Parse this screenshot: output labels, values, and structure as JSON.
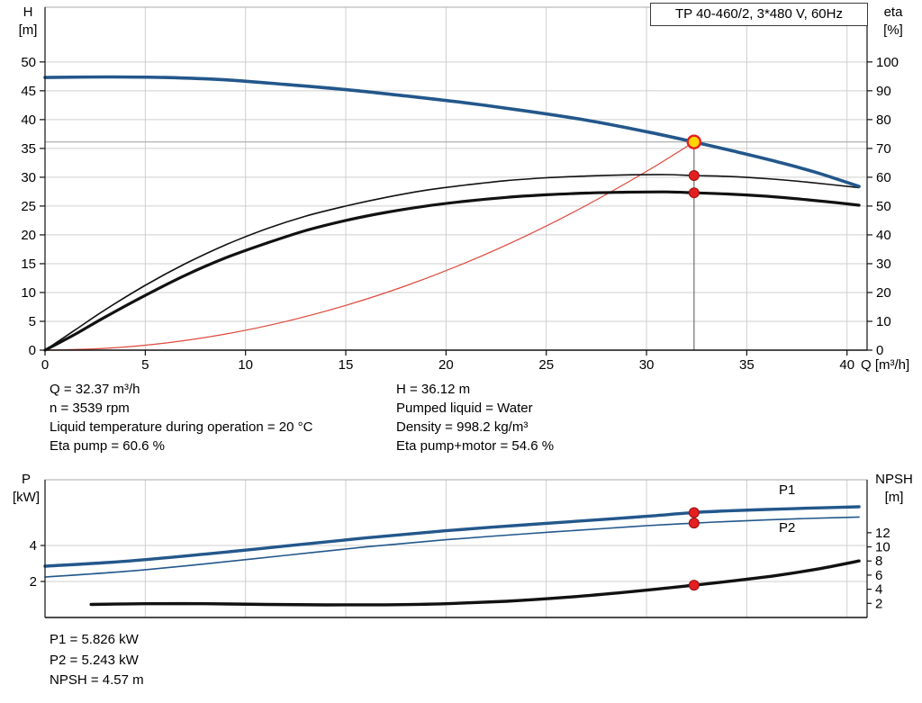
{
  "axis_labels": {
    "h": [
      "H",
      "[m]"
    ],
    "eta": [
      "eta",
      "[%]"
    ],
    "q": "Q [m³/h]",
    "p": [
      "P",
      "[kW]"
    ],
    "npsh": [
      "NPSH",
      "[m]"
    ]
  },
  "operating_point": {
    "left": [
      "Q = 32.37 m³/h",
      "n = 3539 rpm",
      "Liquid temperature during operation = 20 °C",
      "Eta pump = 60.6 %"
    ],
    "right": [
      "H = 36.12 m",
      "Pumped liquid = Water",
      "Density = 998.2 kg/m³",
      "Eta pump+motor = 54.6 %"
    ],
    "bottom": [
      "P1 = 5.826 kW",
      "P2 = 5.243 kW",
      "NPSH = 4.57 m"
    ]
  },
  "colors": {
    "curve_blue": "#23578b",
    "curve_black": "#111111",
    "curve_red": "#dd4a3c",
    "marker_red": "#e31f1f",
    "marker_yellow": "#ffd500",
    "grid": "#cfcfcf",
    "guide_gray": "#8a8a8a"
  },
  "chart_data": [
    {
      "type": "line",
      "name": "qh-efficiency-chart",
      "title": "TP 40-460/2, 3*480 V, 60Hz",
      "x_axis": {
        "label": "Q [m³/h]",
        "min": 0,
        "max": 41,
        "ticks": [
          0,
          5,
          10,
          15,
          20,
          25,
          30,
          35,
          40
        ]
      },
      "y_left": {
        "label": "H [m]",
        "min": 0,
        "max": 59.5,
        "ticks": [
          0,
          5,
          10,
          15,
          20,
          25,
          30,
          35,
          40,
          45,
          50
        ]
      },
      "y_right": {
        "label": "eta [%]",
        "min": 0,
        "max": 119,
        "ticks": [
          0,
          10,
          20,
          30,
          40,
          50,
          60,
          70,
          80,
          90,
          100
        ]
      },
      "grid": true,
      "series": [
        {
          "name": "system-curve",
          "axis": "left",
          "color": "#dd4a3c",
          "width": 1.2,
          "points": [
            [
              0,
              0
            ],
            [
              3,
              0.31
            ],
            [
              6,
              1.24
            ],
            [
              9,
              2.79
            ],
            [
              12,
              4.96
            ],
            [
              15,
              7.76
            ],
            [
              18,
              11.17
            ],
            [
              21,
              15.2
            ],
            [
              24,
              19.85
            ],
            [
              27,
              25.13
            ],
            [
              30,
              31.02
            ],
            [
              32.37,
              36.12
            ]
          ]
        },
        {
          "name": "eta-pump-curve",
          "axis": "right",
          "color": "#111111",
          "width": 1.6,
          "points": [
            [
              0,
              0
            ],
            [
              1.5,
              7
            ],
            [
              3,
              14
            ],
            [
              5,
              22.5
            ],
            [
              7,
              30
            ],
            [
              9,
              36.5
            ],
            [
              11,
              42
            ],
            [
              13,
              46.5
            ],
            [
              15,
              50
            ],
            [
              17,
              53
            ],
            [
              19,
              55.5
            ],
            [
              21,
              57.3
            ],
            [
              23,
              58.8
            ],
            [
              25,
              59.8
            ],
            [
              27,
              60.4
            ],
            [
              29,
              60.8
            ],
            [
              31,
              60.9
            ],
            [
              32.37,
              60.6
            ],
            [
              34,
              60.3
            ],
            [
              36,
              59.5
            ],
            [
              38,
              58.3
            ],
            [
              40.6,
              56.4
            ]
          ]
        },
        {
          "name": "eta-pump-motor-curve",
          "axis": "right",
          "color": "#111111",
          "width": 3.2,
          "points": [
            [
              0,
              0
            ],
            [
              1.5,
              5.5
            ],
            [
              3,
              11.5
            ],
            [
              5,
              19
            ],
            [
              7,
              26
            ],
            [
              9,
              32
            ],
            [
              11,
              37
            ],
            [
              13,
              41.5
            ],
            [
              15,
              45
            ],
            [
              17,
              47.8
            ],
            [
              19,
              50
            ],
            [
              21,
              51.7
            ],
            [
              23,
              53
            ],
            [
              25,
              53.9
            ],
            [
              27,
              54.5
            ],
            [
              29,
              54.8
            ],
            [
              31,
              54.9
            ],
            [
              32.37,
              54.6
            ],
            [
              34,
              54.2
            ],
            [
              36,
              53.4
            ],
            [
              38,
              52.2
            ],
            [
              40.6,
              50.3
            ]
          ]
        },
        {
          "name": "qh-curve",
          "axis": "left",
          "color": "#23578b",
          "width": 3.6,
          "points": [
            [
              0,
              47.3
            ],
            [
              3,
              47.4
            ],
            [
              6,
              47.3
            ],
            [
              9,
              46.9
            ],
            [
              12,
              46.1
            ],
            [
              15,
              45.2
            ],
            [
              18,
              44.1
            ],
            [
              21,
              42.9
            ],
            [
              24,
              41.5
            ],
            [
              27,
              39.9
            ],
            [
              30,
              37.9
            ],
            [
              32.37,
              36.12
            ],
            [
              34.5,
              34.4
            ],
            [
              36.5,
              32.7
            ],
            [
              38.5,
              30.8
            ],
            [
              40.6,
              28.4
            ]
          ]
        }
      ],
      "guide_lines": [
        {
          "type": "h",
          "axis": "left",
          "y": 36.12,
          "color": "#a8a8a8",
          "width": 1.2
        },
        {
          "type": "v",
          "axis": "left",
          "x": 32.37,
          "y1": 0,
          "y2": 36.12,
          "color": "#6f6f6f",
          "width": 1.2
        }
      ],
      "markers": [
        {
          "name": "eta-pump-point",
          "x": 32.37,
          "y": 60.6,
          "axis": "right",
          "r": 5.5,
          "fill": "#e31f1f",
          "stroke": "#9a1010",
          "stroke_width": 1
        },
        {
          "name": "eta-pump-motor-point",
          "x": 32.37,
          "y": 54.6,
          "axis": "right",
          "r": 5.5,
          "fill": "#e31f1f",
          "stroke": "#9a1010",
          "stroke_width": 1
        },
        {
          "name": "duty-point",
          "x": 32.37,
          "y": 36.12,
          "axis": "left",
          "r": 7,
          "fill": "#ffd500",
          "stroke": "#e31f1f",
          "stroke_width": 2.4
        }
      ],
      "labels": []
    },
    {
      "type": "line",
      "name": "power-npsh-chart",
      "title": "",
      "x_axis": {
        "label": "",
        "min": 0,
        "max": 41,
        "ticks": [
          5,
          10,
          15,
          20,
          25,
          30,
          35,
          40
        ]
      },
      "y_left": {
        "label": "P [kW]",
        "min": 0,
        "max": 7.65,
        "ticks": [
          2,
          4
        ]
      },
      "y_right": {
        "label": "NPSH [m]",
        "min": 0,
        "max": 19.5,
        "ticks": [
          2,
          4,
          6,
          8,
          10,
          12
        ]
      },
      "grid": true,
      "series": [
        {
          "name": "npsh-curve",
          "axis": "right",
          "color": "#111111",
          "width": 3.4,
          "points": [
            [
              2.3,
              1.85
            ],
            [
              5,
              1.95
            ],
            [
              8,
              1.95
            ],
            [
              11,
              1.85
            ],
            [
              14,
              1.78
            ],
            [
              17,
              1.8
            ],
            [
              20,
              1.95
            ],
            [
              23,
              2.3
            ],
            [
              26,
              2.85
            ],
            [
              29,
              3.6
            ],
            [
              32.37,
              4.57
            ],
            [
              34.5,
              5.25
            ],
            [
              36.5,
              5.95
            ],
            [
              38.5,
              6.85
            ],
            [
              40.6,
              8.0
            ]
          ]
        },
        {
          "name": "p2-curve",
          "axis": "left",
          "color": "#23578b",
          "width": 1.6,
          "points": [
            [
              0,
              2.25
            ],
            [
              4,
              2.56
            ],
            [
              8,
              2.98
            ],
            [
              12,
              3.45
            ],
            [
              16,
              3.92
            ],
            [
              20,
              4.32
            ],
            [
              24,
              4.65
            ],
            [
              28,
              4.95
            ],
            [
              30,
              5.1
            ],
            [
              32.37,
              5.24
            ],
            [
              34,
              5.33
            ],
            [
              36,
              5.42
            ],
            [
              38,
              5.5
            ],
            [
              40.6,
              5.58
            ]
          ]
        },
        {
          "name": "p1-curve",
          "axis": "left",
          "color": "#23578b",
          "width": 3.4,
          "points": [
            [
              0,
              2.85
            ],
            [
              4,
              3.12
            ],
            [
              8,
              3.52
            ],
            [
              12,
              3.97
            ],
            [
              16,
              4.42
            ],
            [
              20,
              4.82
            ],
            [
              24,
              5.15
            ],
            [
              28,
              5.46
            ],
            [
              30,
              5.62
            ],
            [
              32.37,
              5.83
            ],
            [
              34,
              5.92
            ],
            [
              36,
              6.0
            ],
            [
              38,
              6.07
            ],
            [
              40.6,
              6.15
            ]
          ]
        }
      ],
      "guide_lines": [],
      "markers": [
        {
          "name": "p1-point",
          "x": 32.37,
          "y": 5.826,
          "axis": "left",
          "r": 5.5,
          "fill": "#e31f1f",
          "stroke": "#9a1010",
          "stroke_width": 1
        },
        {
          "name": "p2-point",
          "x": 32.37,
          "y": 5.243,
          "axis": "left",
          "r": 5.5,
          "fill": "#e31f1f",
          "stroke": "#9a1010",
          "stroke_width": 1
        },
        {
          "name": "npsh-point",
          "x": 32.37,
          "y": 4.57,
          "axis": "right",
          "r": 5.5,
          "fill": "#e31f1f",
          "stroke": "#9a1010",
          "stroke_width": 1
        }
      ],
      "labels": [
        {
          "text": "P1",
          "x": 36.6,
          "y": 7.1,
          "axis": "left",
          "color": "#23578b"
        },
        {
          "text": "P2",
          "x": 36.6,
          "y": 5.0,
          "axis": "left",
          "color": "#23578b"
        }
      ]
    }
  ]
}
